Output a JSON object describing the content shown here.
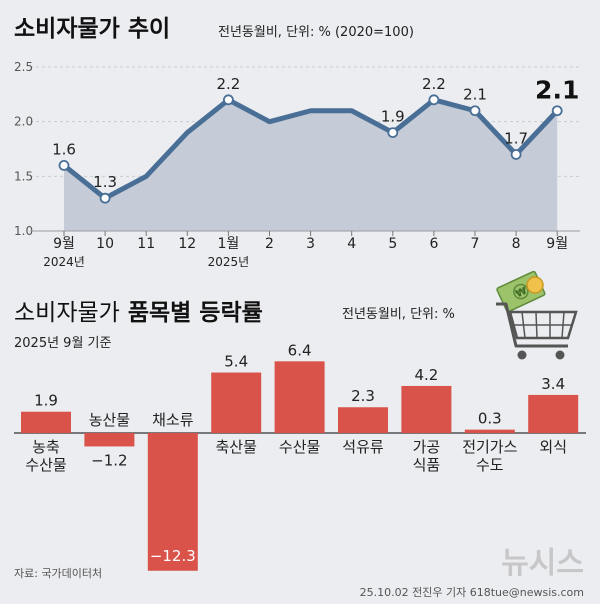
{
  "chart_data": [
    {
      "type": "area",
      "title": "소비자물가 추이",
      "subtitle": "전년동월비, 단위: % (2020=100)",
      "categories": [
        "9월",
        "10",
        "11",
        "12",
        "1월",
        "2",
        "3",
        "4",
        "5",
        "6",
        "7",
        "8",
        "9월"
      ],
      "year_labels": [
        "2024년",
        "2025년"
      ],
      "values": [
        1.6,
        1.3,
        1.5,
        1.9,
        2.2,
        2.0,
        2.1,
        2.1,
        1.9,
        2.2,
        2.1,
        1.7,
        2.1
      ],
      "data_labels": [
        "1.6",
        "1.3",
        "",
        "",
        "2.2",
        "",
        "",
        "",
        "1.9",
        "2.2",
        "2.1",
        "1.7",
        "2.1"
      ],
      "yticks": [
        "1.0",
        "1.5",
        "2.0",
        "2.5"
      ],
      "ylim": [
        1.0,
        2.5
      ]
    },
    {
      "type": "bar",
      "title_normal": "소비자물가",
      "title_bold": "품목별 등락률",
      "subtitle": "전년동월비, 단위: %",
      "note": "2025년 9월 기준",
      "categories": [
        "농축\n수산물",
        "농산물",
        "채소류",
        "축산물",
        "수산물",
        "석유류",
        "가공\n식품",
        "전기가스\n수도",
        "외식"
      ],
      "values": [
        1.9,
        -1.2,
        -12.3,
        5.4,
        6.4,
        2.3,
        4.2,
        0.3,
        3.4
      ],
      "data_labels": [
        "1.9",
        "−1.2",
        "−12.3",
        "5.4",
        "6.4",
        "2.3",
        "4.2",
        "0.3",
        "3.4"
      ]
    }
  ],
  "colors": {
    "line": "#4a6f96",
    "area": "#c6ccd7",
    "bar": "#d9534a",
    "background": "#ecedf0"
  },
  "source": "자료: 국가데이터처",
  "credit": "25.10.02  전진우 기자  618tue@newsis.com",
  "logo_text": "뉴시스",
  "icon": "shopping-cart-money-icon"
}
